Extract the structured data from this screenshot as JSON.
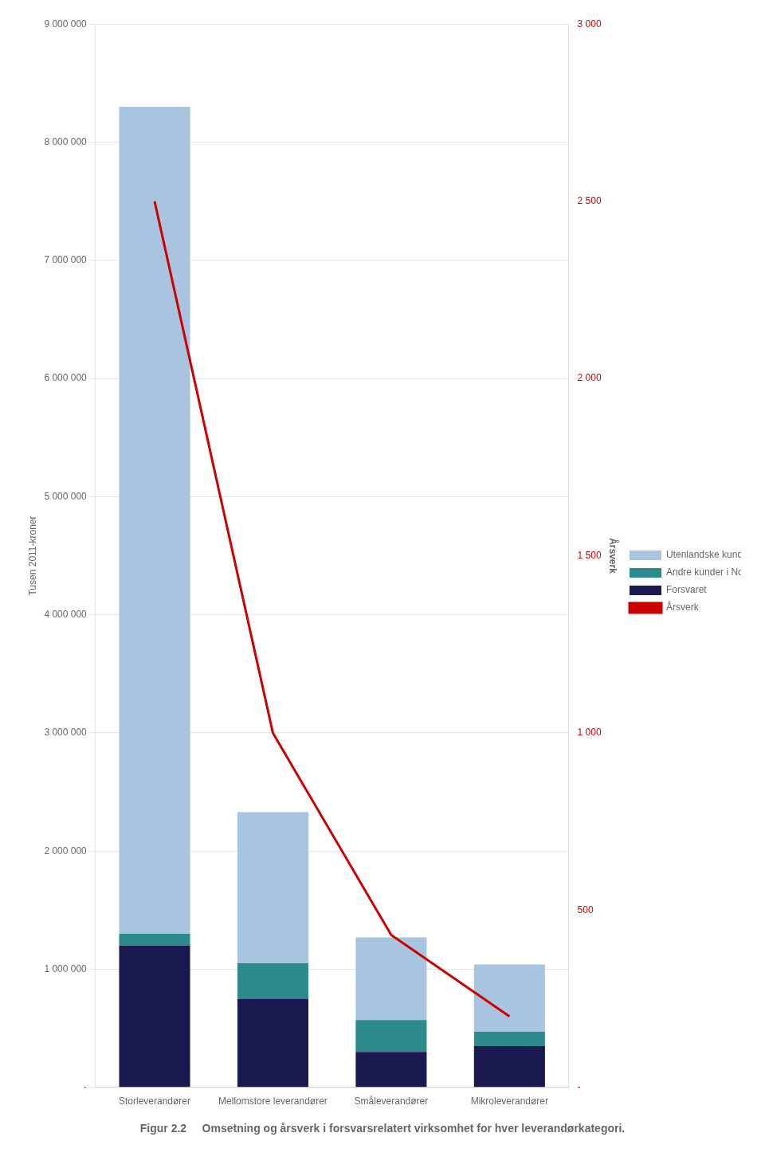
{
  "chart_data": {
    "type": "bar",
    "title": "Figur 2.2     Omsetning og årsverk i forsvarsrelatert virksomhet for hver leverandørkategori.",
    "categories": [
      "Storleverandører",
      "Mellomstore leverandører",
      "Småleverandører",
      "Mikroleverandører"
    ],
    "series": [
      {
        "name": "Forsvaret",
        "color": "#1a1a50",
        "values": [
          1200000,
          750000,
          300000,
          350000
        ]
      },
      {
        "name": "Andre kunder i Norge",
        "color": "#2e8b8b",
        "values": [
          100000,
          300000,
          270000,
          120000
        ]
      },
      {
        "name": "Utenlandske kunder",
        "color": "#a8c4de",
        "values": [
          7000000,
          1280000,
          700000,
          570000
        ]
      },
      {
        "name": "Årsverk",
        "type": "line",
        "axis": "y2",
        "color": "#cc0000",
        "values": [
          2500,
          1000,
          430,
          200
        ]
      }
    ],
    "ylabel": "Tusen 2011-kroner",
    "y2label": "Årsverk",
    "ylim": [
      0,
      9000000
    ],
    "yticks": [
      {
        "value": 0,
        "label": "-"
      },
      {
        "value": 1000000,
        "label": "1 000 000"
      },
      {
        "value": 2000000,
        "label": "2 000 000"
      },
      {
        "value": 3000000,
        "label": "3 000 000"
      },
      {
        "value": 4000000,
        "label": "4 000 000"
      },
      {
        "value": 5000000,
        "label": "5 000 000"
      },
      {
        "value": 6000000,
        "label": "6 000 000"
      },
      {
        "value": 7000000,
        "label": "7 000 000"
      },
      {
        "value": 8000000,
        "label": "8 000 000"
      },
      {
        "value": 9000000,
        "label": "9 000 000"
      }
    ],
    "y2lim": [
      0,
      3000
    ],
    "y2ticks": [
      {
        "value": 0,
        "label": "-"
      },
      500,
      {
        "value": 1000,
        "label": "1 000"
      },
      {
        "value": 1500,
        "label": "1 500"
      },
      {
        "value": 2000,
        "label": "2 000"
      },
      {
        "value": 2500,
        "label": "2 500"
      },
      {
        "value": 3000,
        "label": "3 000"
      }
    ],
    "stacked": true,
    "grid": true,
    "legend": "right"
  }
}
